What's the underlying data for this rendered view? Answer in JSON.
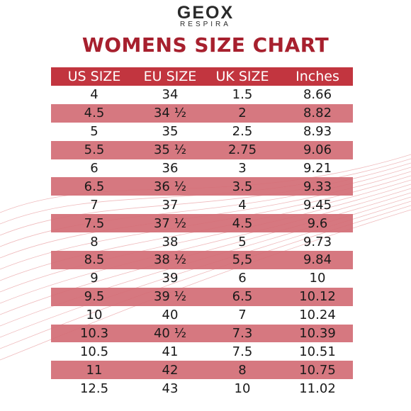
{
  "logo": {
    "brand": "GEOX",
    "tagline": "RESPIRA"
  },
  "title": "WOMENS SIZE CHART",
  "colors": {
    "title": "#a7202e",
    "header": "#c2353f",
    "row_shade": "#d36c75"
  },
  "table": {
    "headers": [
      "US SIZE",
      "EU SIZE",
      "UK SIZE",
      "Inches"
    ],
    "rows": [
      [
        "4",
        "34",
        "1.5",
        "8.66"
      ],
      [
        "4.5",
        "34 ½",
        "2",
        "8.82"
      ],
      [
        "5",
        "35",
        "2.5",
        "8.93"
      ],
      [
        "5.5",
        "35 ½",
        "2.75",
        "9.06"
      ],
      [
        "6",
        "36",
        "3",
        "9.21"
      ],
      [
        "6.5",
        "36 ½",
        "3.5",
        "9.33"
      ],
      [
        "7",
        "37",
        "4",
        "9.45"
      ],
      [
        "7.5",
        "37 ½",
        "4.5",
        "9.6"
      ],
      [
        "8",
        "38",
        "5",
        "9.73"
      ],
      [
        "8.5",
        "38 ½",
        "5,5",
        "9.84"
      ],
      [
        "9",
        "39",
        "6",
        "10"
      ],
      [
        "9.5",
        "39 ½",
        "6.5",
        "10.12"
      ],
      [
        "10",
        "40",
        "7",
        "10.24"
      ],
      [
        "10.3",
        "40 ½",
        "7.3",
        "10.39"
      ],
      [
        "10.5",
        "41",
        "7.5",
        "10.51"
      ],
      [
        "11",
        "42",
        "8",
        "10.75"
      ],
      [
        "12.5",
        "43",
        "10",
        "11.02"
      ]
    ]
  }
}
